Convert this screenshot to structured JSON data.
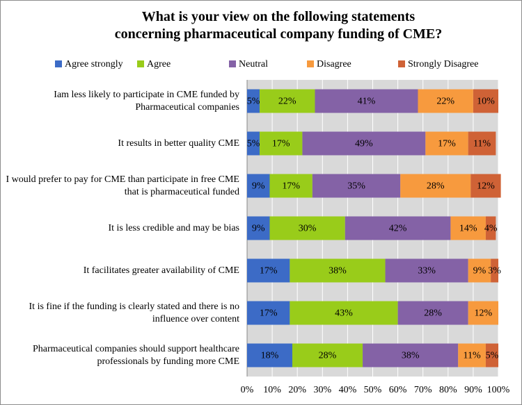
{
  "chart_data": {
    "type": "stacked-bar-horizontal",
    "title": "What is your view on the following statements concerning pharmaceutical company funding of CME?",
    "categories": [
      "Iam less likely to participate in CME funded by Pharmaceutical companies",
      "It results in better quality CME",
      "I would prefer to pay for CME than participate in free CME that is pharmaceutical funded",
      "It is less credible and may be bias",
      "It facilitates greater availability of CME",
      "It is fine if the funding is clearly stated and there is no influence over content",
      "Pharmaceutical companies should support healthcare professionals by funding more CME"
    ],
    "series": [
      {
        "name": "Agree strongly",
        "color": "#3c6bc6",
        "values": [
          5,
          5,
          9,
          9,
          17,
          17,
          18
        ],
        "value_labels": [
          "5%",
          "5%",
          "9%",
          "9%",
          "17%",
          "17%",
          "18%"
        ]
      },
      {
        "name": "Agree",
        "color": "#99cc1a",
        "values": [
          22,
          17,
          17,
          30,
          38,
          43,
          28
        ],
        "value_labels": [
          "22%",
          "17%",
          "17%",
          "30%",
          "38%",
          "43%",
          "28%"
        ]
      },
      {
        "name": "Neutral",
        "color": "#8462a6",
        "values": [
          41,
          49,
          35,
          42,
          33,
          28,
          38
        ],
        "value_labels": [
          "41%",
          "49%",
          "35%",
          "42%",
          "33%",
          "28%",
          "38%"
        ]
      },
      {
        "name": "Disagree",
        "color": "#f79a3e",
        "values": [
          22,
          17,
          28,
          14,
          9,
          12,
          11
        ],
        "value_labels": [
          "22%",
          "17%",
          "28%",
          "14%",
          "9%",
          "12%",
          "11%"
        ]
      },
      {
        "name": "Strongly Disagree",
        "color": "#cf6236",
        "values": [
          10,
          11,
          12,
          4,
          3,
          null,
          5
        ],
        "value_labels": [
          "10%",
          "11%",
          "12%",
          "4%",
          "3%",
          null,
          "5%"
        ]
      }
    ],
    "xlim": [
      0,
      100
    ],
    "xticks": [
      {
        "value": 0,
        "label": "0%"
      },
      {
        "value": 10,
        "label": "10%"
      },
      {
        "value": 20,
        "label": "20%"
      },
      {
        "value": 30,
        "label": "30%"
      },
      {
        "value": 40,
        "label": "40%"
      },
      {
        "value": 50,
        "label": "50%"
      },
      {
        "value": 60,
        "label": "60%"
      },
      {
        "value": 70,
        "label": "70%"
      },
      {
        "value": 80,
        "label": "80%"
      },
      {
        "value": 90,
        "label": "90%"
      },
      {
        "value": 100,
        "label": "100%"
      }
    ],
    "grid": true,
    "legend": "top"
  }
}
